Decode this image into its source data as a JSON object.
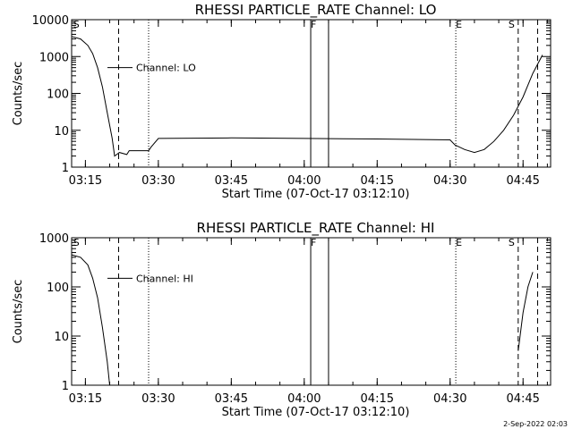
{
  "chart_data": [
    {
      "type": "line",
      "title": "RHESSI PARTICLE_RATE Channel: LO",
      "xlabel": "Start Time (07-Oct-17 03:12:10)",
      "ylabel": "Counts/sec",
      "yscale": "log",
      "xlim": [
        "03:12:10",
        "04:50:40"
      ],
      "ylim": [
        1,
        10000
      ],
      "x_ticks": [
        "03:15",
        "03:30",
        "03:45",
        "04:00",
        "04:15",
        "04:30",
        "04:45"
      ],
      "y_ticks": [
        "1",
        "10",
        "100",
        "1000",
        "10000"
      ],
      "legend": "Channel: LO",
      "series": [
        {
          "name": "Channel: LO",
          "points": [
            [
              "03:12:10",
              3500
            ],
            [
              "03:14:00",
              3000
            ],
            [
              "03:15:30",
              2000
            ],
            [
              "03:16:30",
              1200
            ],
            [
              "03:17:30",
              500
            ],
            [
              "03:18:30",
              150
            ],
            [
              "03:19:30",
              30
            ],
            [
              "03:20:30",
              6
            ],
            [
              "03:21:00",
              2
            ],
            [
              "03:22:00",
              2.5
            ],
            [
              "03:23:30",
              2.2
            ],
            [
              "03:24:00",
              2.8
            ],
            [
              "03:28:00",
              2.8
            ],
            [
              "03:28:30",
              3.5
            ],
            [
              "03:30:00",
              6
            ],
            [
              "03:45:00",
              6.2
            ],
            [
              "04:00:00",
              6
            ],
            [
              "04:15:00",
              5.8
            ],
            [
              "04:30:00",
              5.5
            ],
            [
              "04:31:00",
              4
            ],
            [
              "04:33:00",
              3
            ],
            [
              "04:35:00",
              2.5
            ],
            [
              "04:37:00",
              3
            ],
            [
              "04:39:00",
              5
            ],
            [
              "04:41:00",
              10
            ],
            [
              "04:43:00",
              25
            ],
            [
              "04:45:00",
              80
            ],
            [
              "04:47:00",
              350
            ],
            [
              "04:49:00",
              1100
            ]
          ]
        }
      ]
    },
    {
      "type": "line",
      "title": "RHESSI PARTICLE_RATE Channel: HI",
      "xlabel": "Start Time (07-Oct-17 03:12:10)",
      "ylabel": "Counts/sec",
      "yscale": "log",
      "xlim": [
        "03:12:10",
        "04:50:40"
      ],
      "ylim": [
        1,
        1000
      ],
      "x_ticks": [
        "03:15",
        "03:30",
        "03:45",
        "04:00",
        "04:15",
        "04:30",
        "04:45"
      ],
      "y_ticks": [
        "1",
        "10",
        "100",
        "1000"
      ],
      "legend": "Channel: HI",
      "series": [
        {
          "name": "Channel: HI",
          "points": [
            [
              "03:12:10",
              450
            ],
            [
              "03:14:00",
              400
            ],
            [
              "03:15:30",
              280
            ],
            [
              "03:16:30",
              150
            ],
            [
              "03:17:30",
              60
            ],
            [
              "03:18:30",
              15
            ],
            [
              "03:19:30",
              3
            ],
            [
              "03:20:00",
              1
            ],
            [
              "04:43:00",
              1
            ],
            [
              "04:44:00",
              5
            ],
            [
              "04:45:00",
              30
            ],
            [
              "04:46:00",
              100
            ],
            [
              "04:47:00",
              200
            ]
          ]
        }
      ]
    }
  ],
  "markers": {
    "letters": [
      "S",
      "F",
      "E",
      "S"
    ],
    "dashed_times": [
      "03:21:50",
      "04:44:00",
      "04:48:00"
    ],
    "dotted_times": [
      "03:28:00",
      "04:31:10"
    ],
    "solid_times": [
      "04:01:20",
      "04:05:00"
    ]
  },
  "footer": "2-Sep-2022 02:03",
  "colors": {
    "background": "#ffffff",
    "foreground": "#000000"
  }
}
